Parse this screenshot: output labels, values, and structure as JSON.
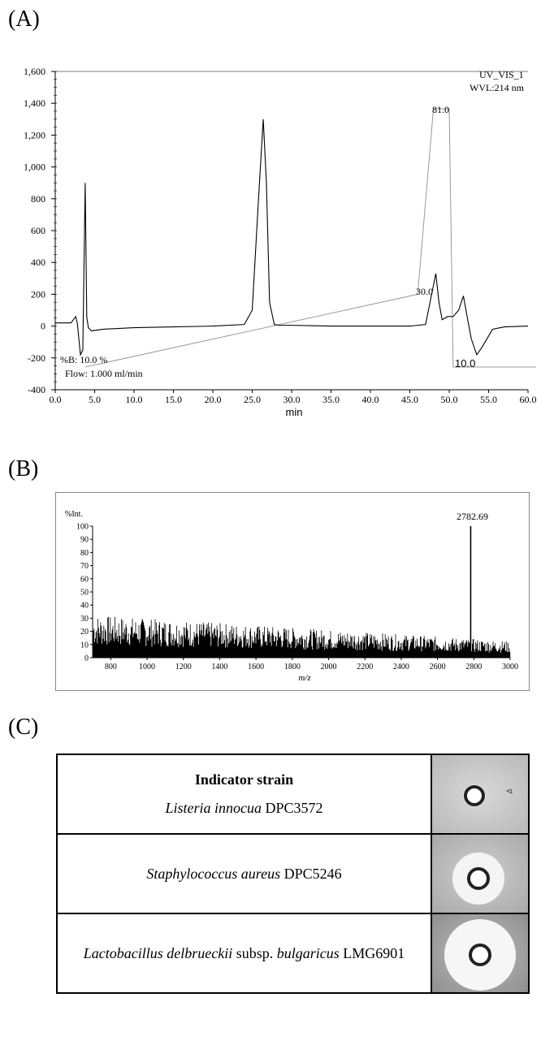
{
  "panels": {
    "a": {
      "label": "(A)"
    },
    "b": {
      "label": "(B)"
    },
    "c": {
      "label": "(C)"
    }
  },
  "chart_data": [
    {
      "type": "line",
      "panel": "(A)",
      "title": "",
      "xlabel": "min",
      "ylabel": "",
      "xlim": [
        0,
        60
      ],
      "ylim": [
        -400,
        1600
      ],
      "x_ticks": [
        "0.0",
        "5.0",
        "10.0",
        "15.0",
        "20.0",
        "25.0",
        "30.0",
        "35.0",
        "40.0",
        "45.0",
        "50.0",
        "55.0",
        "60.0"
      ],
      "y_ticks": [
        "-400",
        "-200",
        "0",
        "200",
        "400",
        "600",
        "800",
        "1,000",
        "1,200",
        "1,400",
        "1,600"
      ],
      "annotations": {
        "channel": "UV_VIS_1",
        "wavelength": "WVL:214 nm",
        "percent_b": "%B: 10.0 %",
        "flow": "Flow: 1.000 ml/min",
        "grad_30": "30.0",
        "grad_81": "81.0",
        "grad_10": "10.0"
      },
      "series": [
        {
          "values_x": [
            0,
            2,
            2.6,
            2.8,
            3.2,
            3.5,
            3.8,
            4.0,
            4.2,
            4.6,
            6,
            10,
            15,
            20,
            24,
            25,
            25.8,
            26.4,
            26.8,
            27.2,
            27.8,
            28.5,
            30,
            35,
            40,
            45,
            47,
            48.3,
            48.7,
            49.1,
            49.8,
            50.5,
            51.2,
            51.8,
            52.2,
            52.8,
            53.5,
            54.2,
            55.5,
            57,
            60
          ],
          "values_y": [
            20,
            20,
            60,
            20,
            -180,
            -150,
            900,
            60,
            -10,
            -30,
            -20,
            -10,
            -5,
            0,
            10,
            100,
            800,
            1300,
            900,
            150,
            10,
            5,
            5,
            0,
            0,
            0,
            10,
            330,
            150,
            40,
            60,
            60,
            100,
            190,
            80,
            -80,
            -180,
            -130,
            -20,
            -5,
            0
          ]
        },
        {
          "name": "gradient",
          "values_x": [
            0,
            46,
            48,
            50,
            50.5,
            61
          ],
          "values_y": [
            10,
            30,
            81,
            81,
            10,
            10
          ]
        }
      ]
    },
    {
      "type": "bar",
      "panel": "(B)",
      "title": "",
      "xlabel": "m/z",
      "ylabel": "%Int.",
      "xlim": [
        700,
        3000
      ],
      "ylim": [
        0,
        100
      ],
      "x_ticks": [
        "800",
        "1000",
        "1200",
        "1400",
        "1600",
        "1800",
        "2000",
        "2200",
        "2400",
        "2600",
        "2800",
        "3000"
      ],
      "y_ticks": [
        "0",
        "10",
        "20",
        "30",
        "40",
        "50",
        "60",
        "70",
        "80",
        "90",
        "100"
      ],
      "peak_label": "2782.69",
      "peak": {
        "x": 2782.69,
        "y": 100
      }
    }
  ],
  "table": {
    "header": "Indicator strain",
    "rows": [
      {
        "italic": "Listeria innocua",
        "rest": " DPC3572",
        "italic2": "",
        "rest2": "",
        "zone": "small"
      },
      {
        "italic": "Staphylococcus aureus",
        "rest": " DPC5246",
        "italic2": "",
        "rest2": "",
        "zone": "medium"
      },
      {
        "italic": "Lactobacillus delbrueckii",
        "rest": " subsp. ",
        "italic2": "bulgaricus",
        "rest2": " LMG6901",
        "zone": "large"
      }
    ]
  }
}
